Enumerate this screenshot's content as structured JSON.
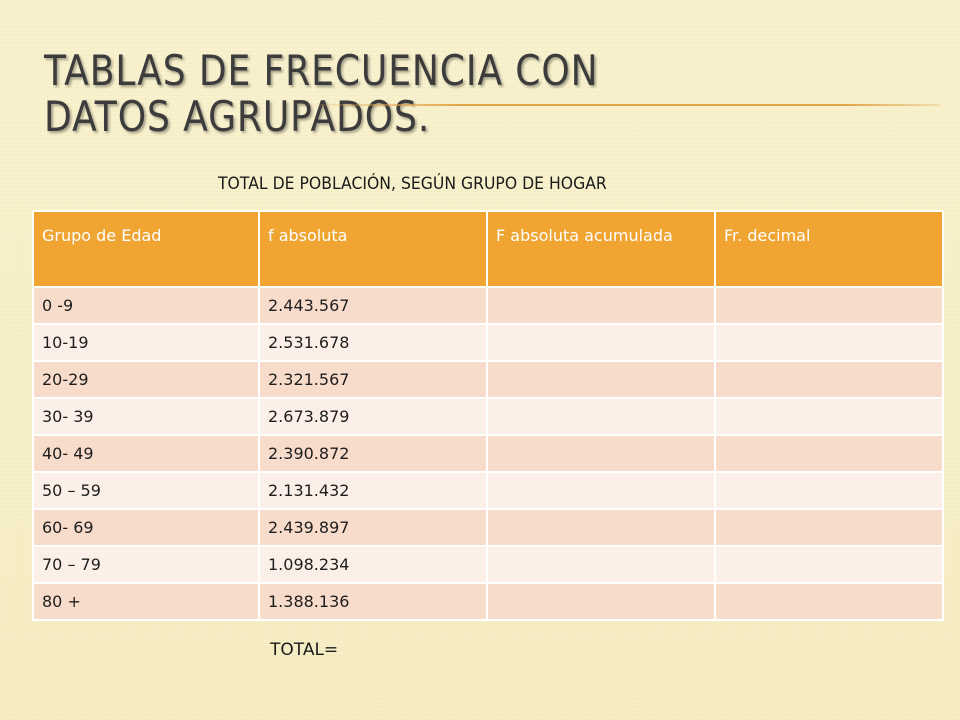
{
  "title": "Tablas de frecuencia con datos agrupados.",
  "caption": "TOTAL DE POBLACIÓN, SEGÚN GRUPO DE HOGAR",
  "table": {
    "headers": [
      "Grupo de  Edad",
      "f absoluta",
      "F absoluta acumulada",
      "Fr. decimal"
    ],
    "rows": [
      [
        "0 -9",
        "2.443.567",
        "",
        ""
      ],
      [
        "10-19",
        "2.531.678",
        "",
        ""
      ],
      [
        "20-29",
        "2.321.567",
        "",
        ""
      ],
      [
        "30- 39",
        "2.673.879",
        "",
        ""
      ],
      [
        "40- 49",
        "2.390.872",
        "",
        ""
      ],
      [
        "50 – 59",
        "2.131.432",
        "",
        ""
      ],
      [
        "60- 69",
        "2.439.897",
        "",
        ""
      ],
      [
        "70 – 79",
        "1.098.234",
        "",
        ""
      ],
      [
        "80 +",
        "1.388.136",
        "",
        ""
      ]
    ]
  },
  "total_label": "TOTAL=",
  "colors": {
    "header": "#f0a432",
    "row_odd": "#f8dccb",
    "row_even": "#fcefe7",
    "accent_rule": "#e2a54a"
  }
}
